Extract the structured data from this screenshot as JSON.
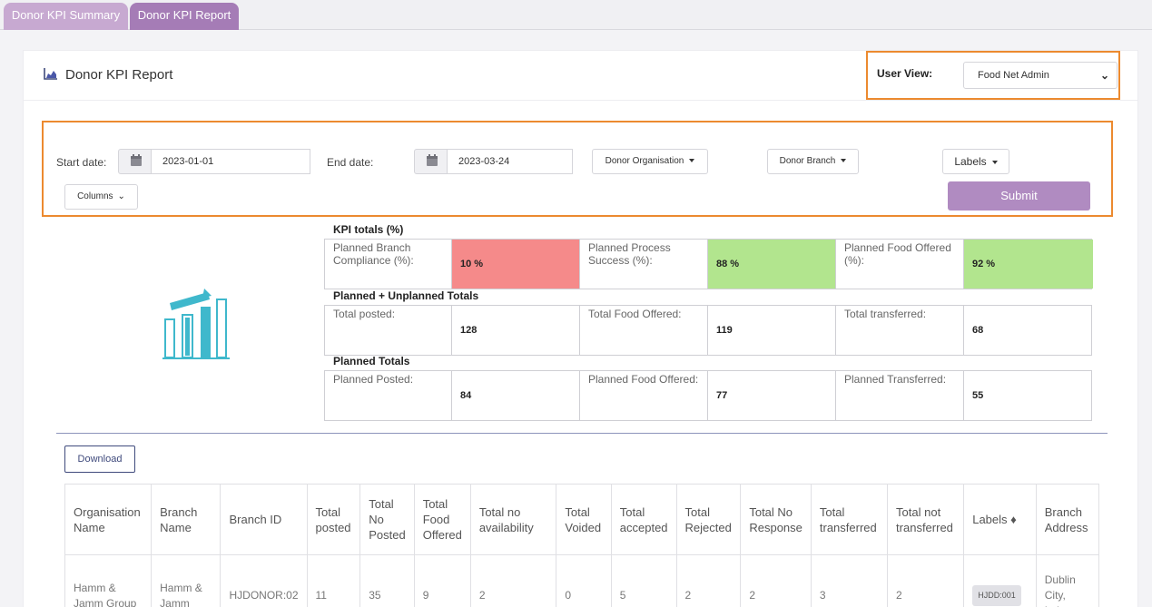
{
  "tabs": [
    {
      "label": "Donor KPI Summary"
    },
    {
      "label": "Donor KPI Report"
    }
  ],
  "header": {
    "title": "Donor KPI Report",
    "title_icon": "area-chart-icon",
    "user_view_label": "User View:",
    "user_view_value": "Food Net Admin"
  },
  "filters": {
    "start_label": "Start date:",
    "start_value": "2023-01-01",
    "end_label": "End date:",
    "end_value": "2023-03-24",
    "donor_org": "Donor Organisation",
    "donor_branch": "Donor Branch",
    "labels": "Labels",
    "columns": "Columns",
    "submit": "Submit"
  },
  "kpi": {
    "totals_title": "KPI totals (%)",
    "row1": [
      {
        "label": "Planned Branch Compliance (%):",
        "value": "10 %",
        "status": "red"
      },
      {
        "label": "Planned Process Success (%):",
        "value": "88 %",
        "status": "green"
      },
      {
        "label": "Planned Food Offered (%):",
        "value": "92 %",
        "status": "green"
      }
    ],
    "combined_title": "Planned + Unplanned Totals",
    "row2": [
      {
        "label": "Total posted:",
        "value": "128"
      },
      {
        "label": "Total Food Offered:",
        "value": "119"
      },
      {
        "label": "Total transferred:",
        "value": "68"
      }
    ],
    "planned_title": "Planned Totals",
    "row3": [
      {
        "label": "Planned Posted:",
        "value": "84"
      },
      {
        "label": "Planned Food Offered:",
        "value": "77"
      },
      {
        "label": "Planned Transferred:",
        "value": "55"
      }
    ]
  },
  "download_label": "Download",
  "table": {
    "headers": [
      "Organisation Name",
      "Branch Name",
      "Branch ID",
      "Total posted",
      "Total No Posted",
      "Total Food Offered",
      "Total no availability",
      "Total Voided",
      "Total accepted",
      "Total Rejected",
      "Total No Response",
      "Total transferred",
      "Total not transferred",
      "Labels",
      "Branch Address"
    ],
    "rows": [
      [
        "Hamm & Jamm Group",
        "Hamm & Jamm",
        "HJDONOR:02",
        "11",
        "35",
        "9",
        "2",
        "0",
        "5",
        "2",
        "2",
        "3",
        "2",
        "HJDD:001",
        "Dublin City, Leinster,"
      ]
    ]
  },
  "colors": {
    "tab_active": "#a57cb6",
    "tab_inactive": "#c7a9d1",
    "submit": "#b08bc1",
    "kpi_red": "#f58a8a",
    "kpi_green": "#b2e58e",
    "highlight": "#ec8a2f",
    "icon_teal": "#3fb8cc"
  }
}
